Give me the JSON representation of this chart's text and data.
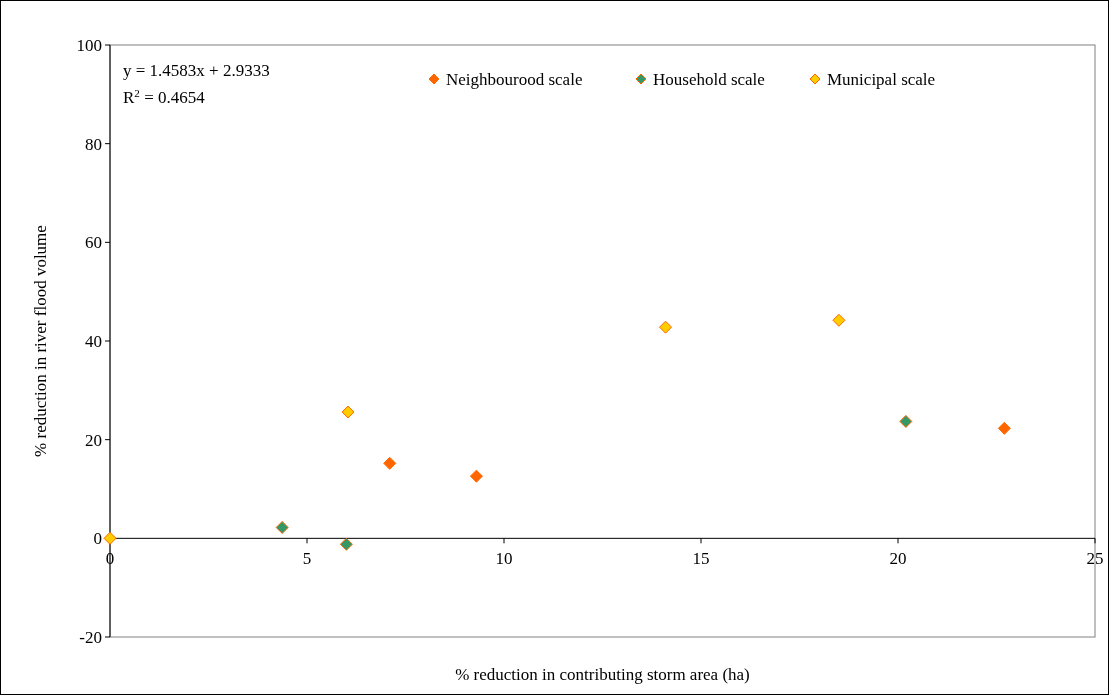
{
  "chart_data": {
    "type": "scatter",
    "xlabel": "% reduction in contributing storm area (ha)",
    "ylabel": "% reduction in river flood volume",
    "xlim": [
      0,
      25
    ],
    "xticks": [
      0,
      5,
      10,
      15,
      20,
      25
    ],
    "ylim": [
      -20,
      100
    ],
    "yticks": [
      -20,
      0,
      20,
      40,
      60,
      80,
      100
    ],
    "grid": false,
    "legend": "top",
    "marker": "diamond",
    "annotations": [
      "y = 1.4583x + 2.9333",
      "R$^{2}$ = 0.4654"
    ],
    "series": [
      {
        "name": "Neighbourood scale",
        "color": "#ff6600",
        "x": [
          7.1,
          9.3,
          22.7
        ],
        "values": [
          15.2,
          12.6,
          22.3
        ]
      },
      {
        "name": "Household scale",
        "color": "#339966",
        "x": [
          4.37,
          6.0,
          20.2
        ],
        "values": [
          2.2,
          -1.2,
          23.7
        ]
      },
      {
        "name": "Municipal scale",
        "color": "#ffcc00",
        "x": [
          0,
          6.04,
          14.1,
          18.5
        ],
        "values": [
          0,
          25.6,
          42.8,
          44.2
        ]
      }
    ]
  }
}
